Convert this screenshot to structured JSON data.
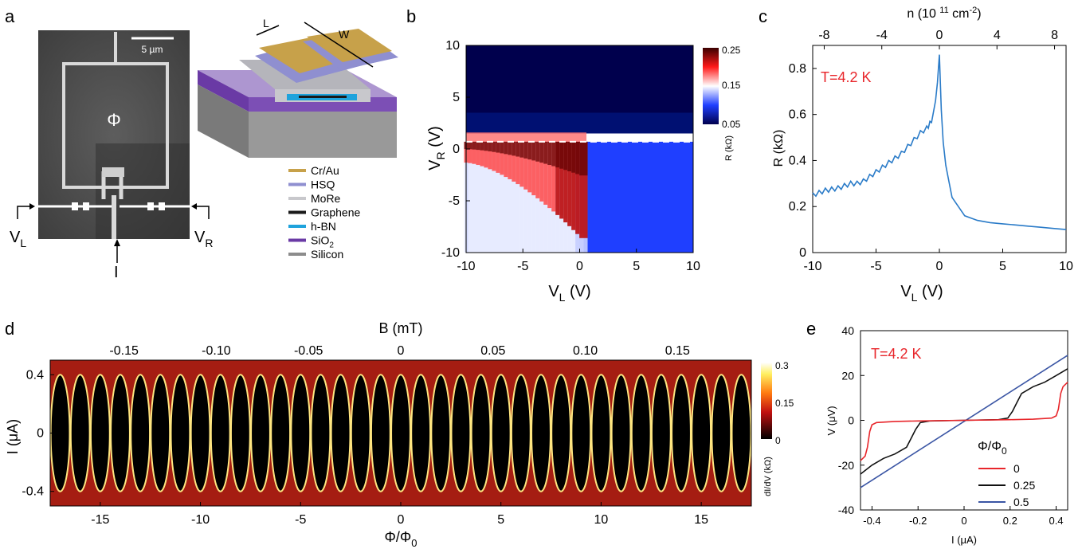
{
  "figure": {
    "panels": {
      "a": {
        "label": "a",
        "scalebar": "5 µm",
        "phi": "Φ",
        "vl": "V",
        "vl_sub": "L",
        "vr": "V",
        "vr_sub": "R",
        "current": "I",
        "dim_L": "L",
        "dim_W": "W",
        "legend": [
          {
            "name": "Cr/Au",
            "color": "#c7a14a"
          },
          {
            "name": "HSQ",
            "color": "#8f8fd0"
          },
          {
            "name": "MoRe",
            "color": "#c8c8cc"
          },
          {
            "name": "Graphene",
            "color": "#1a1a1a"
          },
          {
            "name": "h-BN",
            "color": "#1fa3dc"
          },
          {
            "name": "SiO",
            "sub": "2",
            "color": "#6a3aa5"
          },
          {
            "name": "Silicon",
            "color": "#8c8c8c"
          }
        ]
      },
      "b": {
        "label": "b",
        "xlabel": "V",
        "xlabel_sub": "L",
        "xlabel_unit": " (V)",
        "ylabel": "V",
        "ylabel_sub": "R",
        "ylabel_unit": " (V)",
        "xticks": [
          "-10",
          "-5",
          "0",
          "5",
          "10"
        ],
        "yticks": [
          "10",
          "5",
          "0",
          "-5",
          "-10"
        ],
        "colorbar_ticks": [
          "0.25",
          "0.15",
          "0.05"
        ],
        "colorbar_label": "R (kΩ)"
      },
      "c": {
        "label": "c",
        "annotation": "T=4.2 K",
        "annotation_color": "#e8262b",
        "xlabel": "V",
        "xlabel_sub": "L",
        "xlabel_unit": " (V)",
        "ylabel": "R (kΩ)",
        "top_label_prefix": "n (10 ",
        "top_label_exp": "11",
        "top_label_mid": " cm",
        "top_label_exp2": "-2",
        "top_label_suffix": ")",
        "xticks": [
          "-10",
          "-5",
          "0",
          "5",
          "10"
        ],
        "yticks": [
          "0.8",
          "0.6",
          "0.4",
          "0.2",
          "0"
        ],
        "top_ticks": [
          "-8",
          "-4",
          "0",
          "4",
          "8"
        ]
      },
      "d": {
        "label": "d",
        "top_label": "B (mT)",
        "top_ticks": [
          "-0.15",
          "-0.10",
          "-0.05",
          "0",
          "0.05",
          "0.10",
          "0.15"
        ],
        "xlabel": "Φ/Φ",
        "xlabel_sub": "0",
        "ylabel": "I (μA)",
        "xticks": [
          "-15",
          "-10",
          "-5",
          "0",
          "5",
          "10",
          "15"
        ],
        "yticks": [
          "0.4",
          "0",
          "-0.4"
        ],
        "colorbar_ticks": [
          "0.3",
          "0.15",
          "0"
        ],
        "colorbar_label": "dI/dV (kΩ)"
      },
      "e": {
        "label": "e",
        "annotation": "T=4.2 K",
        "annotation_color": "#e8262b",
        "xlabel": "I (μA)",
        "ylabel": "V (μV)",
        "xticks": [
          "-0.4",
          "-0.2",
          "0",
          "0.2",
          "0.4"
        ],
        "yticks": [
          "40",
          "20",
          "0",
          "-20",
          "-40"
        ],
        "legend_title": "Φ/Φ",
        "legend_title_sub": "0",
        "legend": [
          {
            "name": "0",
            "color": "#e8262b"
          },
          {
            "name": "0.25",
            "color": "#111111"
          },
          {
            "name": "0.5",
            "color": "#3a55a4"
          }
        ]
      }
    }
  },
  "chart_data": [
    {
      "type": "heatmap",
      "panel": "b",
      "xlabel": "VL (V)",
      "ylabel": "VR (V)",
      "xlim": [
        -10,
        10
      ],
      "ylim": [
        -10,
        10
      ],
      "colorbar": {
        "label": "R (kΩ)",
        "range": [
          0.05,
          0.25
        ],
        "colors": [
          "#00004d",
          "#1f3fff",
          "#ffffff",
          "#ff1a1a",
          "#3a0000"
        ]
      },
      "features": {
        "dashed_line_VR": 0.7,
        "dirac_point_VL": 0
      }
    },
    {
      "type": "line",
      "panel": "c",
      "title": "T=4.2 K",
      "xlabel": "VL (V)",
      "ylabel": "R (kΩ)",
      "xlim": [
        -10,
        10
      ],
      "ylim": [
        0,
        0.9
      ],
      "top_axis": {
        "label": "n (10^11 cm^-2)",
        "range": [
          -8.8,
          8.8
        ]
      },
      "series": [
        {
          "color": "#2a7bc8",
          "x": [
            -10,
            -9.5,
            -9,
            -8.5,
            -8,
            -7.5,
            -7,
            -6.5,
            -6,
            -5.5,
            -5,
            -4.5,
            -4,
            -3.5,
            -3,
            -2.5,
            -2,
            -1.5,
            -1,
            -0.75,
            -0.5,
            -0.3,
            -0.15,
            0,
            0.15,
            0.3,
            0.5,
            0.75,
            1,
            1.5,
            2,
            2.5,
            3,
            4,
            5,
            6,
            7,
            8,
            9,
            10
          ],
          "y": [
            0.26,
            0.27,
            0.28,
            0.285,
            0.29,
            0.3,
            0.31,
            0.31,
            0.32,
            0.34,
            0.36,
            0.38,
            0.4,
            0.42,
            0.44,
            0.47,
            0.5,
            0.53,
            0.55,
            0.57,
            0.6,
            0.66,
            0.74,
            0.86,
            0.62,
            0.48,
            0.38,
            0.31,
            0.24,
            0.2,
            0.16,
            0.15,
            0.14,
            0.13,
            0.125,
            0.12,
            0.115,
            0.11,
            0.105,
            0.1
          ]
        }
      ]
    },
    {
      "type": "heatmap",
      "panel": "d",
      "xlabel": "Φ/Φ0",
      "ylabel": "I (μA)",
      "xlim": [
        -17.5,
        17.5
      ],
      "ylim": [
        -0.5,
        0.5
      ],
      "top_axis": {
        "label": "B (mT)",
        "range": [
          -0.19,
          0.19
        ]
      },
      "colorbar": {
        "label": "dI/dV (kΩ)",
        "range": [
          0,
          0.3
        ]
      },
      "features": {
        "critical_current_uA": 0.4,
        "lobe_period_phi0": 1
      }
    },
    {
      "type": "line",
      "panel": "e",
      "title": "T=4.2 K",
      "xlabel": "I (μA)",
      "ylabel": "V (μV)",
      "xlim": [
        -0.45,
        0.45
      ],
      "ylim": [
        -40,
        40
      ],
      "series": [
        {
          "name": "0",
          "color": "#e8262b",
          "x": [
            -0.45,
            -0.43,
            -0.42,
            -0.41,
            -0.4,
            -0.38,
            -0.3,
            -0.2,
            0,
            0.2,
            0.3,
            0.38,
            0.4,
            0.41,
            0.42,
            0.43,
            0.45
          ],
          "y": [
            -18,
            -16,
            -12,
            -5,
            -2,
            -1,
            -0.5,
            -0.3,
            0,
            0.3,
            0.5,
            1,
            2,
            5,
            12,
            15,
            17
          ]
        },
        {
          "name": "0.25",
          "color": "#111111",
          "x": [
            -0.45,
            -0.4,
            -0.35,
            -0.3,
            -0.25,
            -0.23,
            -0.21,
            -0.19,
            -0.15,
            0,
            0.15,
            0.19,
            0.21,
            0.23,
            0.25,
            0.3,
            0.35,
            0.4,
            0.45
          ],
          "y": [
            -24,
            -20,
            -17,
            -15,
            -12,
            -8,
            -4,
            -1,
            -0.3,
            0,
            0.3,
            1,
            4,
            8,
            12,
            15,
            17,
            20,
            23
          ]
        },
        {
          "name": "0.5",
          "color": "#3a55a4",
          "x": [
            -0.45,
            0.45
          ],
          "y": [
            -30,
            29
          ]
        }
      ]
    }
  ]
}
